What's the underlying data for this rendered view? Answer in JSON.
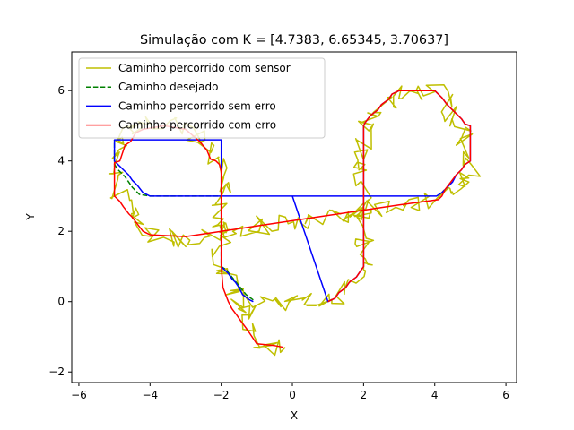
{
  "chart_data": {
    "type": "line",
    "title": "Simulação com K = [4.7383, 6.65345, 3.70637]",
    "xlabel": "X",
    "ylabel": "Y",
    "xlim": [
      -6.2,
      6.3
    ],
    "ylim": [
      -2.3,
      7.1
    ],
    "xticks": [
      -6,
      -4,
      -2,
      0,
      2,
      4,
      6
    ],
    "yticks": [
      -2,
      0,
      2,
      4,
      6
    ],
    "xtick_labels": [
      "−6",
      "−4",
      "−2",
      "0",
      "2",
      "4",
      "6"
    ],
    "ytick_labels": [
      "−2",
      "0",
      "2",
      "4",
      "6"
    ],
    "grid": false,
    "legend_position": "upper-left",
    "series": [
      {
        "name": "Caminho percorrido com sensor",
        "color": "#bfbf00",
        "style": "noisy",
        "noise_amplitude": 0.28,
        "x": [
          -1.1,
          0.0,
          1.0,
          1.3,
          1.6,
          1.85,
          2.0,
          2.0,
          2.2,
          2.6,
          3.0,
          3.5,
          4.0,
          4.45,
          4.55,
          4.7,
          4.85,
          4.95,
          5.0,
          5.0,
          4.9,
          4.75,
          4.6,
          4.45,
          4.3,
          4.0,
          3.0,
          2.0,
          1.0,
          0.0,
          -1.0,
          -1.95,
          -2.0,
          -2.1,
          -2.4,
          -3.0,
          -3.5,
          -4.0,
          -4.4,
          -4.6,
          -4.75,
          -4.95,
          -5.0,
          -5.0,
          -4.9,
          -4.75,
          -4.5,
          -4.0,
          -3.5,
          -3.0,
          -2.5,
          -2.2,
          -2.05,
          -2.0,
          -2.0,
          -1.8,
          -1.6,
          -1.5,
          -1.3,
          -1.2,
          -1.0,
          -0.5,
          -0.2
        ],
        "y": [
          0.0,
          0.0,
          0.0,
          0.25,
          0.55,
          0.8,
          1.0,
          5.0,
          5.3,
          5.6,
          5.95,
          6.0,
          6.0,
          5.6,
          5.3,
          5.0,
          4.6,
          4.3,
          4.0,
          3.7,
          3.5,
          3.3,
          3.1,
          3.0,
          3.0,
          2.9,
          2.75,
          2.6,
          2.45,
          2.3,
          2.15,
          2.05,
          2.0,
          1.95,
          1.9,
          1.8,
          1.85,
          1.9,
          2.1,
          2.5,
          2.9,
          3.3,
          3.7,
          4.0,
          4.4,
          4.8,
          5.0,
          5.05,
          5.1,
          4.9,
          4.5,
          4.1,
          3.8,
          3.5,
          1.0,
          0.6,
          0.3,
          0.0,
          -0.3,
          -0.7,
          -1.1,
          -1.25,
          -1.3
        ]
      },
      {
        "name": "Caminho desejado",
        "color": "#008000",
        "style": "dashed",
        "x": [
          -1.1,
          -1.3,
          -1.5,
          -1.7,
          -1.85,
          -2.0,
          -2.0,
          -2.2,
          -2.5,
          -3.0,
          -3.5,
          -4.0,
          -4.3,
          -4.5,
          -4.7,
          -4.9,
          -5.0,
          -5.0
        ],
        "y": [
          0.05,
          0.2,
          0.45,
          0.7,
          0.9,
          1.0,
          3.0,
          3.0,
          3.0,
          3.0,
          3.0,
          3.0,
          3.05,
          3.25,
          3.55,
          3.75,
          3.9,
          4.6
        ]
      },
      {
        "name": "Caminho percorrido sem erro",
        "color": "#0000ff",
        "style": "solid",
        "x": [
          -1.1,
          -1.2,
          -1.4,
          -1.5,
          -1.6,
          -1.7,
          -1.8,
          -1.9,
          -2.0,
          -2.0,
          -2.3,
          -3.0,
          -3.5,
          -4.0,
          -4.2,
          -4.35,
          -4.5,
          -4.6,
          -4.75,
          -4.85,
          -5.0,
          -5.0,
          -2.0,
          -2.0,
          -2.0,
          -1.0,
          0.0,
          1.0,
          1.2,
          1.3,
          1.5,
          1.6,
          1.8,
          1.9,
          2.0,
          2.0,
          2.05,
          2.2,
          2.4,
          2.5,
          2.7,
          2.8,
          3.0,
          4.0,
          4.2,
          4.35,
          4.5,
          4.6,
          4.75,
          4.85,
          5.0,
          5.0,
          4.85,
          4.75,
          4.6,
          4.5,
          4.35,
          4.2,
          4.05,
          3.9,
          3.0,
          2.0,
          1.0,
          0.0,
          -1.0,
          -2.0
        ],
        "y": [
          0.0,
          0.05,
          0.2,
          0.4,
          0.55,
          0.65,
          0.8,
          0.9,
          1.0,
          3.0,
          3.0,
          3.0,
          3.0,
          3.0,
          3.1,
          3.3,
          3.45,
          3.6,
          3.75,
          3.85,
          4.0,
          4.6,
          4.6,
          4.0,
          3.0,
          3.0,
          3.0,
          0.0,
          0.1,
          0.25,
          0.4,
          0.55,
          0.7,
          0.85,
          1.0,
          5.0,
          5.1,
          5.3,
          5.45,
          5.6,
          5.75,
          5.9,
          6.0,
          6.0,
          5.8,
          5.6,
          5.45,
          5.35,
          5.2,
          5.05,
          5.0,
          4.0,
          3.9,
          3.75,
          3.6,
          3.4,
          3.25,
          3.1,
          3.0,
          3.0,
          3.0,
          3.0,
          3.0,
          3.0,
          3.0,
          3.0
        ]
      },
      {
        "name": "Caminho percorrido com erro",
        "color": "#ff0000",
        "style": "solid",
        "x": [
          1.0,
          1.2,
          1.3,
          1.5,
          1.6,
          1.8,
          1.9,
          2.0,
          2.0,
          2.05,
          2.2,
          2.4,
          2.5,
          2.7,
          2.8,
          3.0,
          4.0,
          4.2,
          4.35,
          4.5,
          4.6,
          4.75,
          4.85,
          5.0,
          5.0,
          4.85,
          4.75,
          4.6,
          4.45,
          4.3,
          4.2,
          4.1,
          3.0,
          2.0,
          1.0,
          0.0,
          -1.0,
          -2.0,
          -3.0,
          -4.0,
          -4.2,
          -4.35,
          -4.5,
          -4.6,
          -4.75,
          -4.85,
          -5.0,
          -5.0,
          -4.85,
          -4.7,
          -4.55,
          -4.4,
          -4.2,
          -3.6,
          -3.0,
          -2.6,
          -2.4,
          -2.3,
          -2.15,
          -2.05,
          -2.0,
          -2.0,
          -1.95,
          -1.8,
          -1.7,
          -1.55,
          -1.45,
          -1.3,
          -1.2,
          -1.0,
          -0.5,
          -0.25
        ],
        "y": [
          0.0,
          0.1,
          0.25,
          0.4,
          0.55,
          0.7,
          0.85,
          1.0,
          5.0,
          5.1,
          5.3,
          5.45,
          5.6,
          5.75,
          5.9,
          6.0,
          6.0,
          5.8,
          5.6,
          5.45,
          5.35,
          5.2,
          5.05,
          5.0,
          4.0,
          3.9,
          3.75,
          3.6,
          3.4,
          3.2,
          3.0,
          2.9,
          2.75,
          2.6,
          2.45,
          2.3,
          2.15,
          2.0,
          1.85,
          1.9,
          2.0,
          2.2,
          2.4,
          2.5,
          2.7,
          2.85,
          3.0,
          3.95,
          4.0,
          4.45,
          4.55,
          4.8,
          4.9,
          5.0,
          4.9,
          4.55,
          4.3,
          4.05,
          4.0,
          3.9,
          3.7,
          1.0,
          0.4,
          0.0,
          -0.2,
          -0.4,
          -0.55,
          -0.75,
          -0.9,
          -1.2,
          -1.25,
          -1.3
        ]
      }
    ]
  }
}
